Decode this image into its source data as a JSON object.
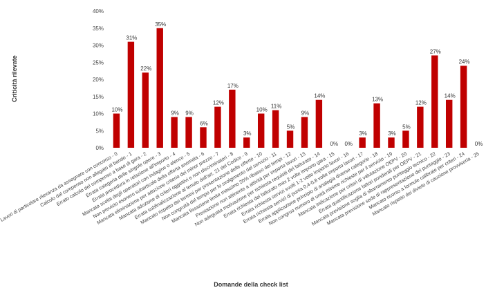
{
  "chart_data": {
    "type": "bar",
    "title": "",
    "xlabel": "Domande della check list",
    "ylabel": "Criticità rilevate",
    "ylim": [
      0,
      40
    ],
    "yticks": [
      0,
      5,
      10,
      15,
      20,
      25,
      30,
      35,
      40
    ],
    "ytick_suffix": "%",
    "grid": false,
    "bar_color": "#c00000",
    "categories": [
      "Lavori di particolare rilevanza da assegnare con concorso - 0",
      "Calcolo del compenso non allegato al bando - 1",
      "Errato calcolo del compenso a base di gara - 2",
      "Errata categoria delle singole opere - 3",
      "Errata procedura in relazione all'importo - 4",
      "Mancata scelta degli operatori con indagine o elenco - 5",
      "Non previsto esonero subarticolo della offerta anomala - 6",
      "Mancata eliminazione per adozione criterio del minor prezzo - 7",
      "Mancata adozione di criteri oggettivi e non discriminatori - 8",
      "Errata subfinalizzazione al tenuto dell'art. 21 del Codice - 9",
      "Mancato rispetto dei termini per presentazione delle offerte - 10",
      "Non congruità del tempo per lo svolgimento del servizio - 11",
      "Mancata fissazione limite massimo 20% ribasso dei tempi - 12",
      "Prestazione non attinente a attività per importo lavori - 13",
      "Non adeguata motivazione per richiesta requisiti del fatturato - 14",
      "Errata richiesta del fatturato max 2 volte importo gara - 15",
      "Errata richiesta servizi svolti 1-2 volte importo lavori - 16",
      "Errata richiesta servizi di punta 0,4-0,8 volte importo lavori - 17",
      "Errata applicazione principio di analogia diverse categorie - 18",
      "Non congruo numero di unità minime richieste per il servizio - 19",
      "Mancata indicazione per criteri di valutazione OEPV - 20",
      "Errata quantificazione fattori ponderali per OEPV - 21",
      "Mancata previsione soglia di sbarramento punteggio tecnico - 22",
      "Mancata previsione sede di rappresentazione del punteggio - 23",
      "Mancato ricorso a formule calibrate per criteri - 24",
      "Mancato rispetto dei divieto di cauzione provvisoria - 25"
    ],
    "values": [
      10,
      31,
      22,
      35,
      9,
      9,
      6,
      12,
      17,
      3,
      10,
      11,
      5,
      9,
      14,
      0,
      0,
      3,
      13,
      3,
      5,
      12,
      27,
      14,
      24,
      0
    ],
    "data_labels": [
      "10%",
      "31%",
      "22%",
      "35%",
      "9%",
      "9%",
      "6%",
      "12%",
      "17%",
      "3%",
      "10%",
      "11%",
      "5%",
      "9%",
      "14%",
      "0%",
      "0%",
      "3%",
      "13%",
      "3%",
      "5%",
      "12%",
      "27%",
      "14%",
      "24%",
      "0%"
    ]
  }
}
